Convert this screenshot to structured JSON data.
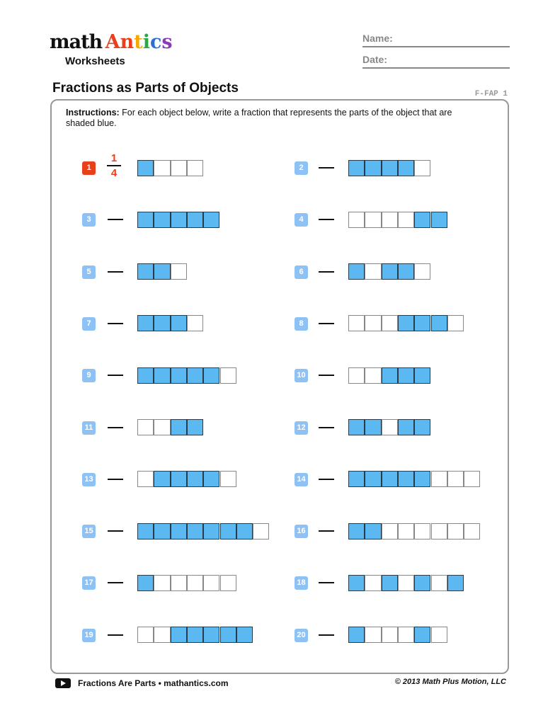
{
  "logo": {
    "word1": "math",
    "word2": "Antics",
    "word2_colors": [
      "#e8401c",
      "#e8401c",
      "#f5a800",
      "#2aa84a",
      "#2a6fd6",
      "#8a3bb8"
    ],
    "subtitle": "Worksheets"
  },
  "header": {
    "name_label": "Name:",
    "date_label": "Date:"
  },
  "title": "Fractions as Parts of Objects",
  "code": "F-FAP 1",
  "instructions": {
    "label": "Instructions:",
    "text": " For each object below, write a fraction that represents the parts of the object that are shaded blue."
  },
  "example": {
    "numerator": "1",
    "denominator": "4"
  },
  "colors": {
    "shaded": "#5bb8f0",
    "badge": "#8ec2f5",
    "example_badge": "#e8401c"
  },
  "problems": [
    {
      "n": "1",
      "cells": [
        1,
        0,
        0,
        0
      ]
    },
    {
      "n": "2",
      "cells": [
        1,
        1,
        1,
        1,
        0
      ]
    },
    {
      "n": "3",
      "cells": [
        1,
        1,
        1,
        1,
        1
      ]
    },
    {
      "n": "4",
      "cells": [
        0,
        0,
        0,
        0,
        1,
        1
      ]
    },
    {
      "n": "5",
      "cells": [
        1,
        1,
        0
      ]
    },
    {
      "n": "6",
      "cells": [
        1,
        0,
        1,
        1,
        0
      ]
    },
    {
      "n": "7",
      "cells": [
        1,
        1,
        1,
        0
      ]
    },
    {
      "n": "8",
      "cells": [
        0,
        0,
        0,
        1,
        1,
        1,
        0
      ]
    },
    {
      "n": "9",
      "cells": [
        1,
        1,
        1,
        1,
        1,
        0
      ]
    },
    {
      "n": "10",
      "cells": [
        0,
        0,
        1,
        1,
        1
      ]
    },
    {
      "n": "11",
      "cells": [
        0,
        0,
        1,
        1
      ]
    },
    {
      "n": "12",
      "cells": [
        1,
        1,
        0,
        1,
        1
      ]
    },
    {
      "n": "13",
      "cells": [
        0,
        1,
        1,
        1,
        1,
        0
      ]
    },
    {
      "n": "14",
      "cells": [
        1,
        1,
        1,
        1,
        1,
        0,
        0,
        0
      ]
    },
    {
      "n": "15",
      "cells": [
        1,
        1,
        1,
        1,
        1,
        1,
        1,
        0
      ]
    },
    {
      "n": "16",
      "cells": [
        1,
        1,
        0,
        0,
        0,
        0,
        0,
        0
      ]
    },
    {
      "n": "17",
      "cells": [
        1,
        0,
        0,
        0,
        0,
        0
      ]
    },
    {
      "n": "18",
      "cells": [
        1,
        0,
        1,
        0,
        1,
        0,
        1
      ]
    },
    {
      "n": "19",
      "cells": [
        0,
        0,
        1,
        1,
        1,
        1,
        1
      ]
    },
    {
      "n": "20",
      "cells": [
        1,
        0,
        0,
        0,
        1,
        0
      ]
    }
  ],
  "footer": {
    "video": "Fractions Are Parts • mathantics.com",
    "copyright": "© 2013 Math Plus Motion, LLC"
  }
}
